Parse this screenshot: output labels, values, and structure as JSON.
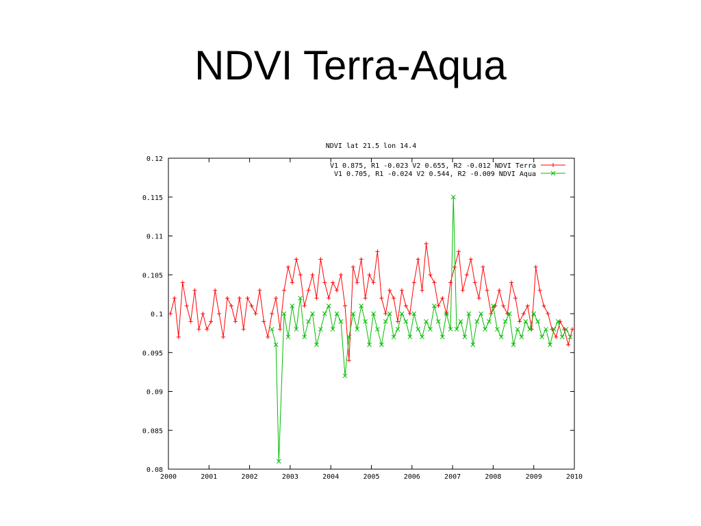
{
  "slide": {
    "title": "NDVI Terra-Aqua"
  },
  "chart_data": {
    "type": "line",
    "title": "NDVI lat 21.5 lon 14.4",
    "xlabel": "",
    "ylabel": "",
    "xlim": [
      2000,
      2010
    ],
    "ylim": [
      0.08,
      0.12
    ],
    "x_ticks": [
      2000,
      2001,
      2002,
      2003,
      2004,
      2005,
      2006,
      2007,
      2008,
      2009,
      2010
    ],
    "x_tick_labels": [
      "2000",
      "2001",
      "2002",
      "2003",
      "2004",
      "2005",
      "2006",
      "2007",
      "2008",
      "2009",
      "2010"
    ],
    "y_ticks": [
      0.08,
      0.085,
      0.09,
      0.095,
      0.1,
      0.105,
      0.11,
      0.115,
      0.12
    ],
    "y_tick_labels": [
      "0.08",
      "0.085",
      "0.09",
      "0.095",
      "0.1",
      "0.105",
      "0.11",
      "0.115",
      "0.12"
    ],
    "grid": false,
    "legend_position": "top-right",
    "series": [
      {
        "name": "V1 0.875, R1 -0.023 V2 0.655, R2 -0.012 NDVI Terra",
        "color": "#ff0000",
        "marker": "plus",
        "x": [
          2000.05,
          2000.15,
          2000.25,
          2000.35,
          2000.45,
          2000.55,
          2000.65,
          2000.75,
          2000.85,
          2000.95,
          2001.05,
          2001.15,
          2001.25,
          2001.35,
          2001.45,
          2001.55,
          2001.65,
          2001.75,
          2001.85,
          2001.95,
          2002.05,
          2002.15,
          2002.25,
          2002.35,
          2002.45,
          2002.55,
          2002.65,
          2002.75,
          2002.85,
          2002.95,
          2003.05,
          2003.15,
          2003.25,
          2003.35,
          2003.45,
          2003.55,
          2003.65,
          2003.75,
          2003.85,
          2003.95,
          2004.05,
          2004.15,
          2004.25,
          2004.35,
          2004.45,
          2004.55,
          2004.65,
          2004.75,
          2004.85,
          2004.95,
          2005.05,
          2005.15,
          2005.25,
          2005.35,
          2005.45,
          2005.55,
          2005.65,
          2005.75,
          2005.85,
          2005.95,
          2006.05,
          2006.15,
          2006.25,
          2006.35,
          2006.45,
          2006.55,
          2006.65,
          2006.75,
          2006.85,
          2006.95,
          2007.05,
          2007.15,
          2007.25,
          2007.35,
          2007.45,
          2007.55,
          2007.65,
          2007.75,
          2007.85,
          2007.95,
          2008.05,
          2008.15,
          2008.25,
          2008.35,
          2008.45,
          2008.55,
          2008.65,
          2008.75,
          2008.85,
          2008.95,
          2009.05,
          2009.15,
          2009.25,
          2009.35,
          2009.45,
          2009.55,
          2009.65,
          2009.75,
          2009.85,
          2009.95
        ],
        "y": [
          0.1,
          0.102,
          0.097,
          0.104,
          0.101,
          0.099,
          0.103,
          0.098,
          0.1,
          0.098,
          0.099,
          0.103,
          0.1,
          0.097,
          0.102,
          0.101,
          0.099,
          0.102,
          0.098,
          0.102,
          0.101,
          0.1,
          0.103,
          0.099,
          0.097,
          0.1,
          0.102,
          0.098,
          0.103,
          0.106,
          0.104,
          0.107,
          0.105,
          0.101,
          0.103,
          0.105,
          0.102,
          0.107,
          0.104,
          0.102,
          0.104,
          0.103,
          0.105,
          0.101,
          0.094,
          0.106,
          0.104,
          0.107,
          0.102,
          0.105,
          0.104,
          0.108,
          0.102,
          0.1,
          0.103,
          0.102,
          0.099,
          0.103,
          0.101,
          0.1,
          0.104,
          0.107,
          0.103,
          0.109,
          0.105,
          0.104,
          0.101,
          0.102,
          0.1,
          0.104,
          0.106,
          0.108,
          0.103,
          0.105,
          0.107,
          0.104,
          0.102,
          0.106,
          0.103,
          0.1,
          0.101,
          0.103,
          0.101,
          0.1,
          0.104,
          0.102,
          0.099,
          0.1,
          0.101,
          0.098,
          0.106,
          0.103,
          0.101,
          0.1,
          0.098,
          0.097,
          0.099,
          0.098,
          0.096,
          0.098
        ]
      },
      {
        "name": "V1 0.705, R1 -0.024 V2 0.544, R2 -0.009 NDVI Aqua",
        "color": "#00bb00",
        "marker": "cross",
        "x": [
          2002.55,
          2002.65,
          2002.72,
          2002.85,
          2002.95,
          2003.05,
          2003.15,
          2003.25,
          2003.35,
          2003.45,
          2003.55,
          2003.65,
          2003.75,
          2003.85,
          2003.95,
          2004.05,
          2004.15,
          2004.25,
          2004.35,
          2004.45,
          2004.55,
          2004.65,
          2004.75,
          2004.85,
          2004.95,
          2005.05,
          2005.15,
          2005.25,
          2005.35,
          2005.45,
          2005.55,
          2005.65,
          2005.75,
          2005.85,
          2005.95,
          2006.05,
          2006.15,
          2006.25,
          2006.35,
          2006.45,
          2006.55,
          2006.65,
          2006.75,
          2006.85,
          2006.95,
          2007.02,
          2007.1,
          2007.2,
          2007.3,
          2007.4,
          2007.5,
          2007.6,
          2007.7,
          2007.8,
          2007.9,
          2008.0,
          2008.1,
          2008.2,
          2008.3,
          2008.4,
          2008.5,
          2008.6,
          2008.7,
          2008.8,
          2008.9,
          2009.0,
          2009.1,
          2009.2,
          2009.3,
          2009.4,
          2009.5,
          2009.6,
          2009.7,
          2009.8,
          2009.9
        ],
        "y": [
          0.098,
          0.096,
          0.081,
          0.1,
          0.097,
          0.101,
          0.098,
          0.102,
          0.097,
          0.099,
          0.1,
          0.096,
          0.098,
          0.1,
          0.101,
          0.098,
          0.1,
          0.099,
          0.092,
          0.097,
          0.1,
          0.098,
          0.101,
          0.099,
          0.096,
          0.1,
          0.098,
          0.096,
          0.099,
          0.1,
          0.097,
          0.098,
          0.1,
          0.099,
          0.097,
          0.1,
          0.098,
          0.097,
          0.099,
          0.098,
          0.101,
          0.099,
          0.097,
          0.1,
          0.098,
          0.115,
          0.098,
          0.099,
          0.097,
          0.1,
          0.096,
          0.099,
          0.1,
          0.098,
          0.099,
          0.101,
          0.098,
          0.097,
          0.099,
          0.1,
          0.096,
          0.098,
          0.097,
          0.099,
          0.098,
          0.1,
          0.099,
          0.097,
          0.098,
          0.096,
          0.098,
          0.099,
          0.097,
          0.098,
          0.097
        ]
      }
    ]
  }
}
